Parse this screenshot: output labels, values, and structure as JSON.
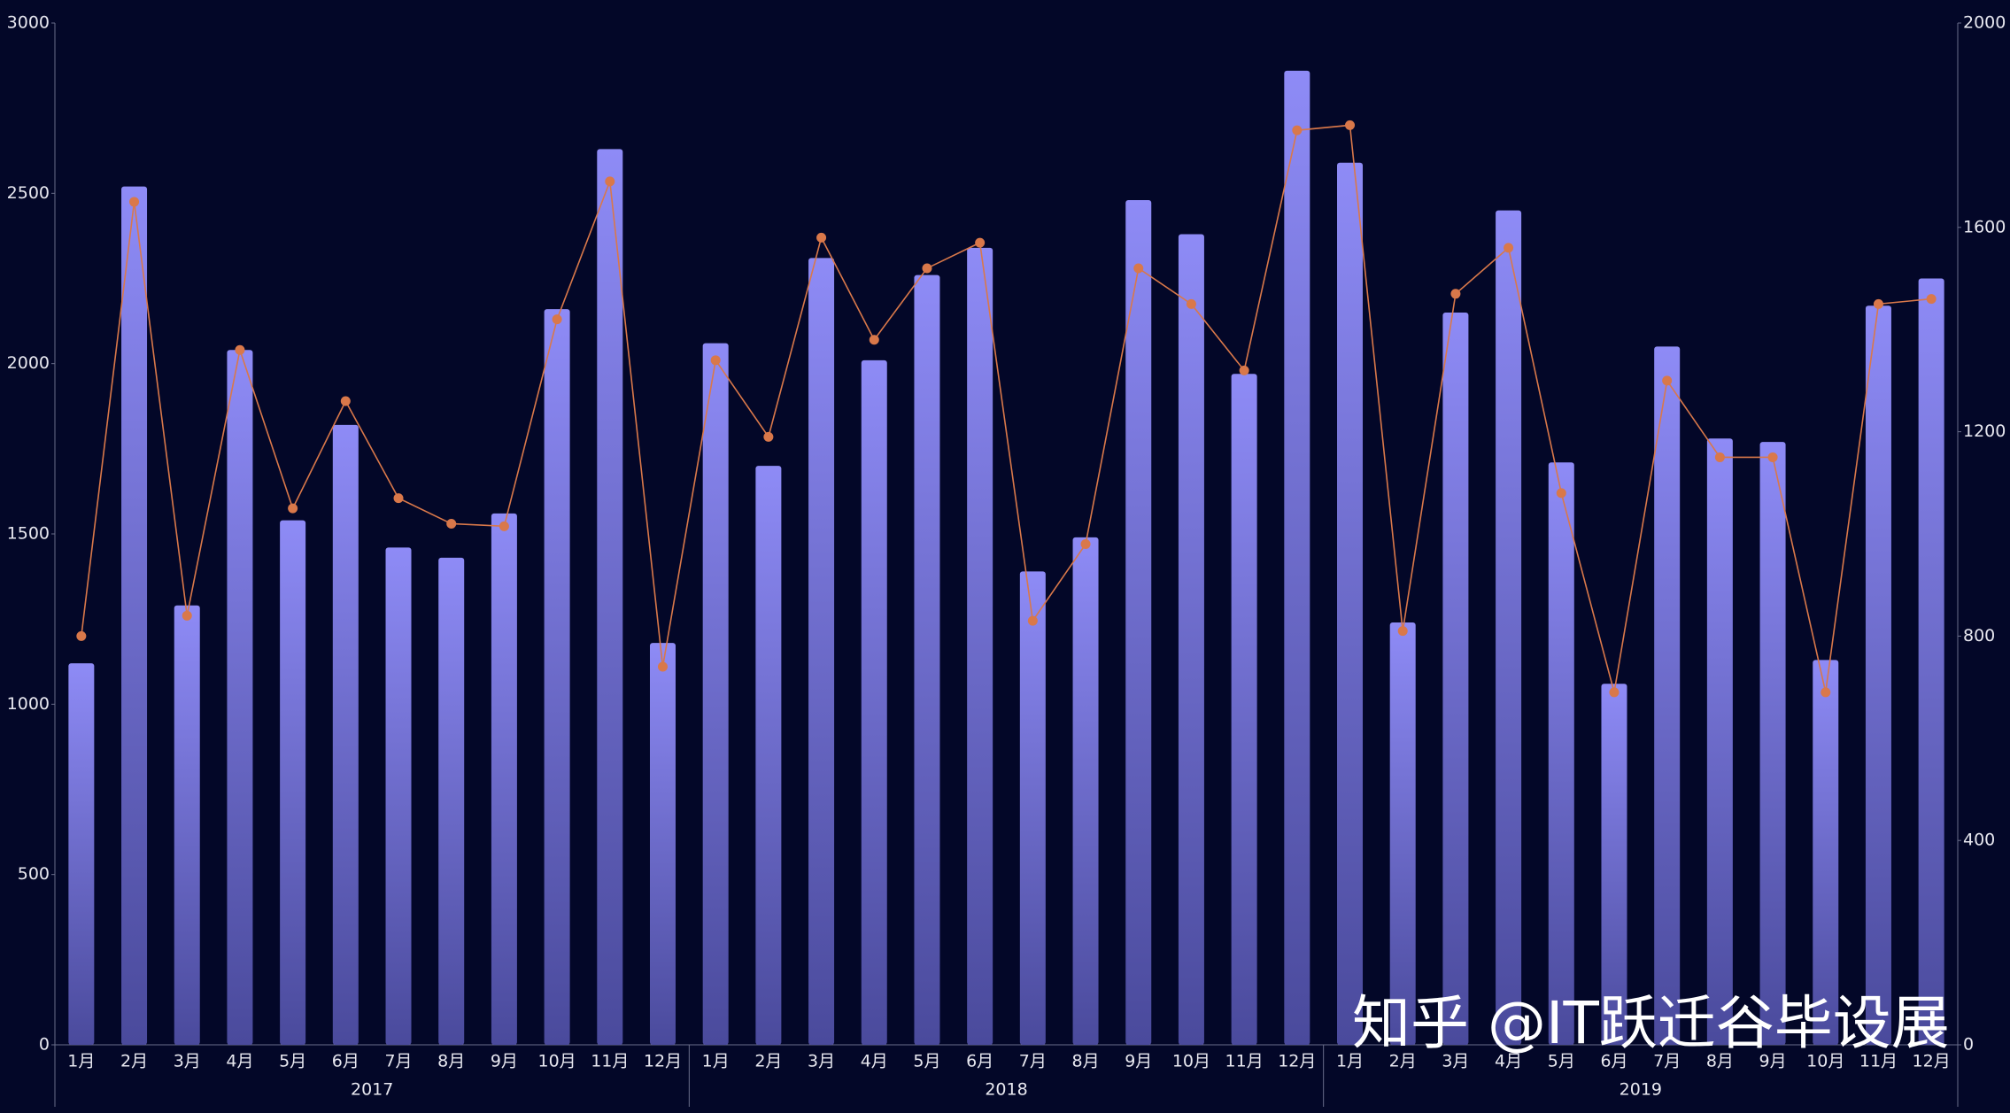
{
  "chart_data": {
    "type": "bar",
    "categories": [
      "1月",
      "2月",
      "3月",
      "4月",
      "5月",
      "6月",
      "7月",
      "8月",
      "9月",
      "10月",
      "11月",
      "12月",
      "1月",
      "2月",
      "3月",
      "4月",
      "5月",
      "6月",
      "7月",
      "8月",
      "9月",
      "10月",
      "11月",
      "12月",
      "1月",
      "2月",
      "3月",
      "4月",
      "5月",
      "6月",
      "7月",
      "8月",
      "9月",
      "10月",
      "11月",
      "12月"
    ],
    "groups": [
      "2017",
      "2018",
      "2019"
    ],
    "series": [
      {
        "type": "bar",
        "color": "#8c89f5",
        "values": [
          1120,
          2520,
          1290,
          2040,
          1540,
          1820,
          1460,
          1430,
          1560,
          2160,
          2630,
          1180,
          2060,
          1700,
          2310,
          2010,
          2260,
          2340,
          1390,
          1490,
          2480,
          2380,
          1970,
          2860,
          2590,
          1240,
          2150,
          2450,
          1710,
          1060,
          2050,
          1780,
          1770,
          1130,
          2170,
          2250
        ]
      },
      {
        "type": "line",
        "axis": "y2",
        "color": "#d9784a",
        "values": [
          800,
          1650,
          840,
          1360,
          1050,
          1260,
          1070,
          1020,
          1015,
          1420,
          1690,
          740,
          1340,
          1190,
          1580,
          1380,
          1520,
          1570,
          830,
          980,
          1520,
          1450,
          1320,
          1790,
          1800,
          810,
          1470,
          1560,
          1080,
          690,
          1300,
          1150,
          1150,
          690,
          1450,
          1460
        ]
      }
    ],
    "ylim": [
      0,
      3000
    ],
    "yticks": [
      0,
      500,
      1000,
      1500,
      2000,
      2500,
      3000
    ],
    "y2lim": [
      0,
      2000
    ],
    "y2ticks": [
      0,
      400,
      800,
      1200,
      1600,
      2000
    ],
    "grid": false,
    "watermark": "知乎 @IT跃迁谷毕设展"
  }
}
